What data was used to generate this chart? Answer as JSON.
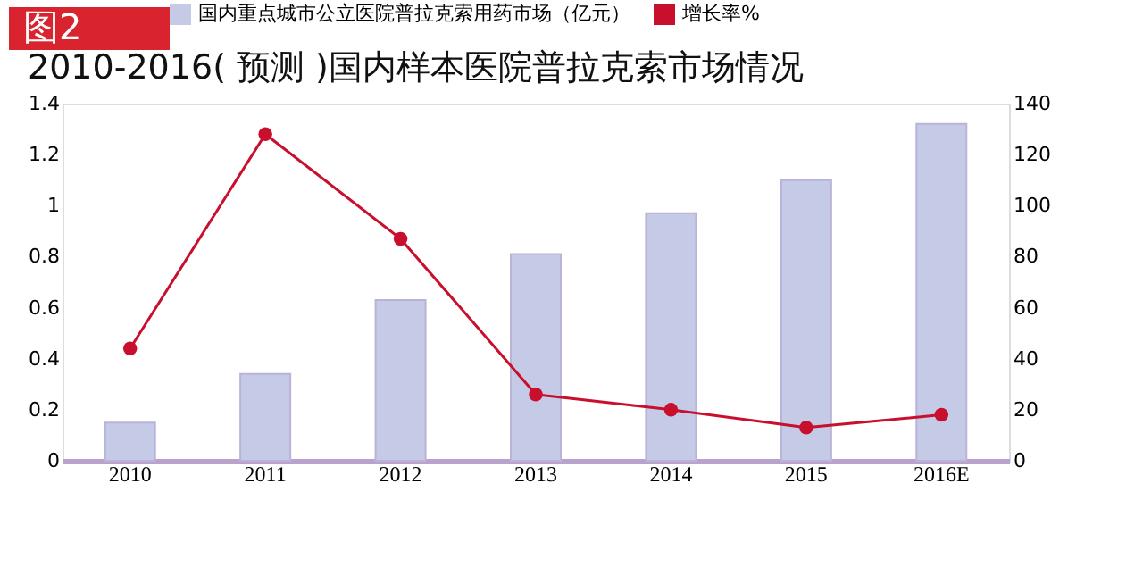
{
  "chart_data": {
    "type": "bar",
    "title": "2010-2016( 预测 )国内样本医院普拉克索市场情况",
    "annotations": [
      "图2"
    ],
    "categories": [
      "2010",
      "2011",
      "2012",
      "2013",
      "2014",
      "2015",
      "2016E"
    ],
    "series": [
      {
        "name": "国内重点城市公立医院普拉克索用药市场（亿元）",
        "color": "#c5cbe6",
        "values": [
          0.15,
          0.34,
          0.63,
          0.81,
          0.97,
          1.1,
          1.32
        ]
      },
      {
        "name": "增长率%",
        "type": "line",
        "axis": "y2",
        "color": "#c8102e",
        "values": [
          44,
          128,
          87,
          26,
          20,
          13,
          18
        ]
      }
    ],
    "ylim": [
      0,
      1.4
    ],
    "yticks": [
      0,
      0.2,
      0.4,
      0.6,
      0.8,
      1,
      1.2,
      1.4
    ],
    "y2lim": [
      0,
      140
    ],
    "y2ticks": [
      0,
      20,
      40,
      60,
      80,
      100,
      120,
      140
    ],
    "grid": false,
    "legend": "top",
    "marker": "circle",
    "line_style": "solid"
  }
}
